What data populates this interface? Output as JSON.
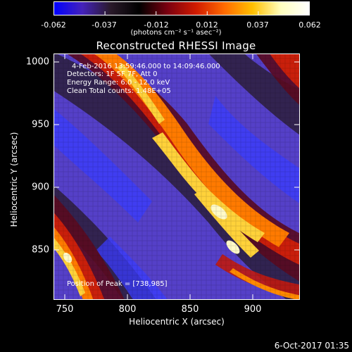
{
  "colorbar": {
    "tick_labels": [
      "-0.062",
      "-0.037",
      "-0.012",
      "0.012",
      "0.037",
      "0.062"
    ],
    "units_label": "(photons cm⁻² s⁻¹ asec⁻²)",
    "colormap": [
      "#0000ff",
      "#4422bb",
      "#2a1a2a",
      "#000000",
      "#7a0010",
      "#d01a00",
      "#ff6a00",
      "#ffc000",
      "#ffffc0",
      "#ffffff"
    ]
  },
  "title": "Reconstructed RHESSI Image",
  "info": {
    "time_range": "4-Feb-2016 13:59:46.000 to 14:09:46.000",
    "detectors": "Detectors: 1F 5F 7F, Att 0",
    "energy": "Energy Range: 6.0 - 12.0 keV",
    "method": "Clean     Total counts: 1.48E+05",
    "peak": "Position of Peak = [738,985]"
  },
  "axes": {
    "xlabel": "Heliocentric X (arcsec)",
    "ylabel": "Heliocentric Y (arcsec)",
    "xticks": [
      "750",
      "800",
      "850",
      "900"
    ],
    "yticks": [
      "1000",
      "950",
      "900",
      "850"
    ]
  },
  "footer": {
    "date": "6-Oct-2017 01:35"
  }
}
